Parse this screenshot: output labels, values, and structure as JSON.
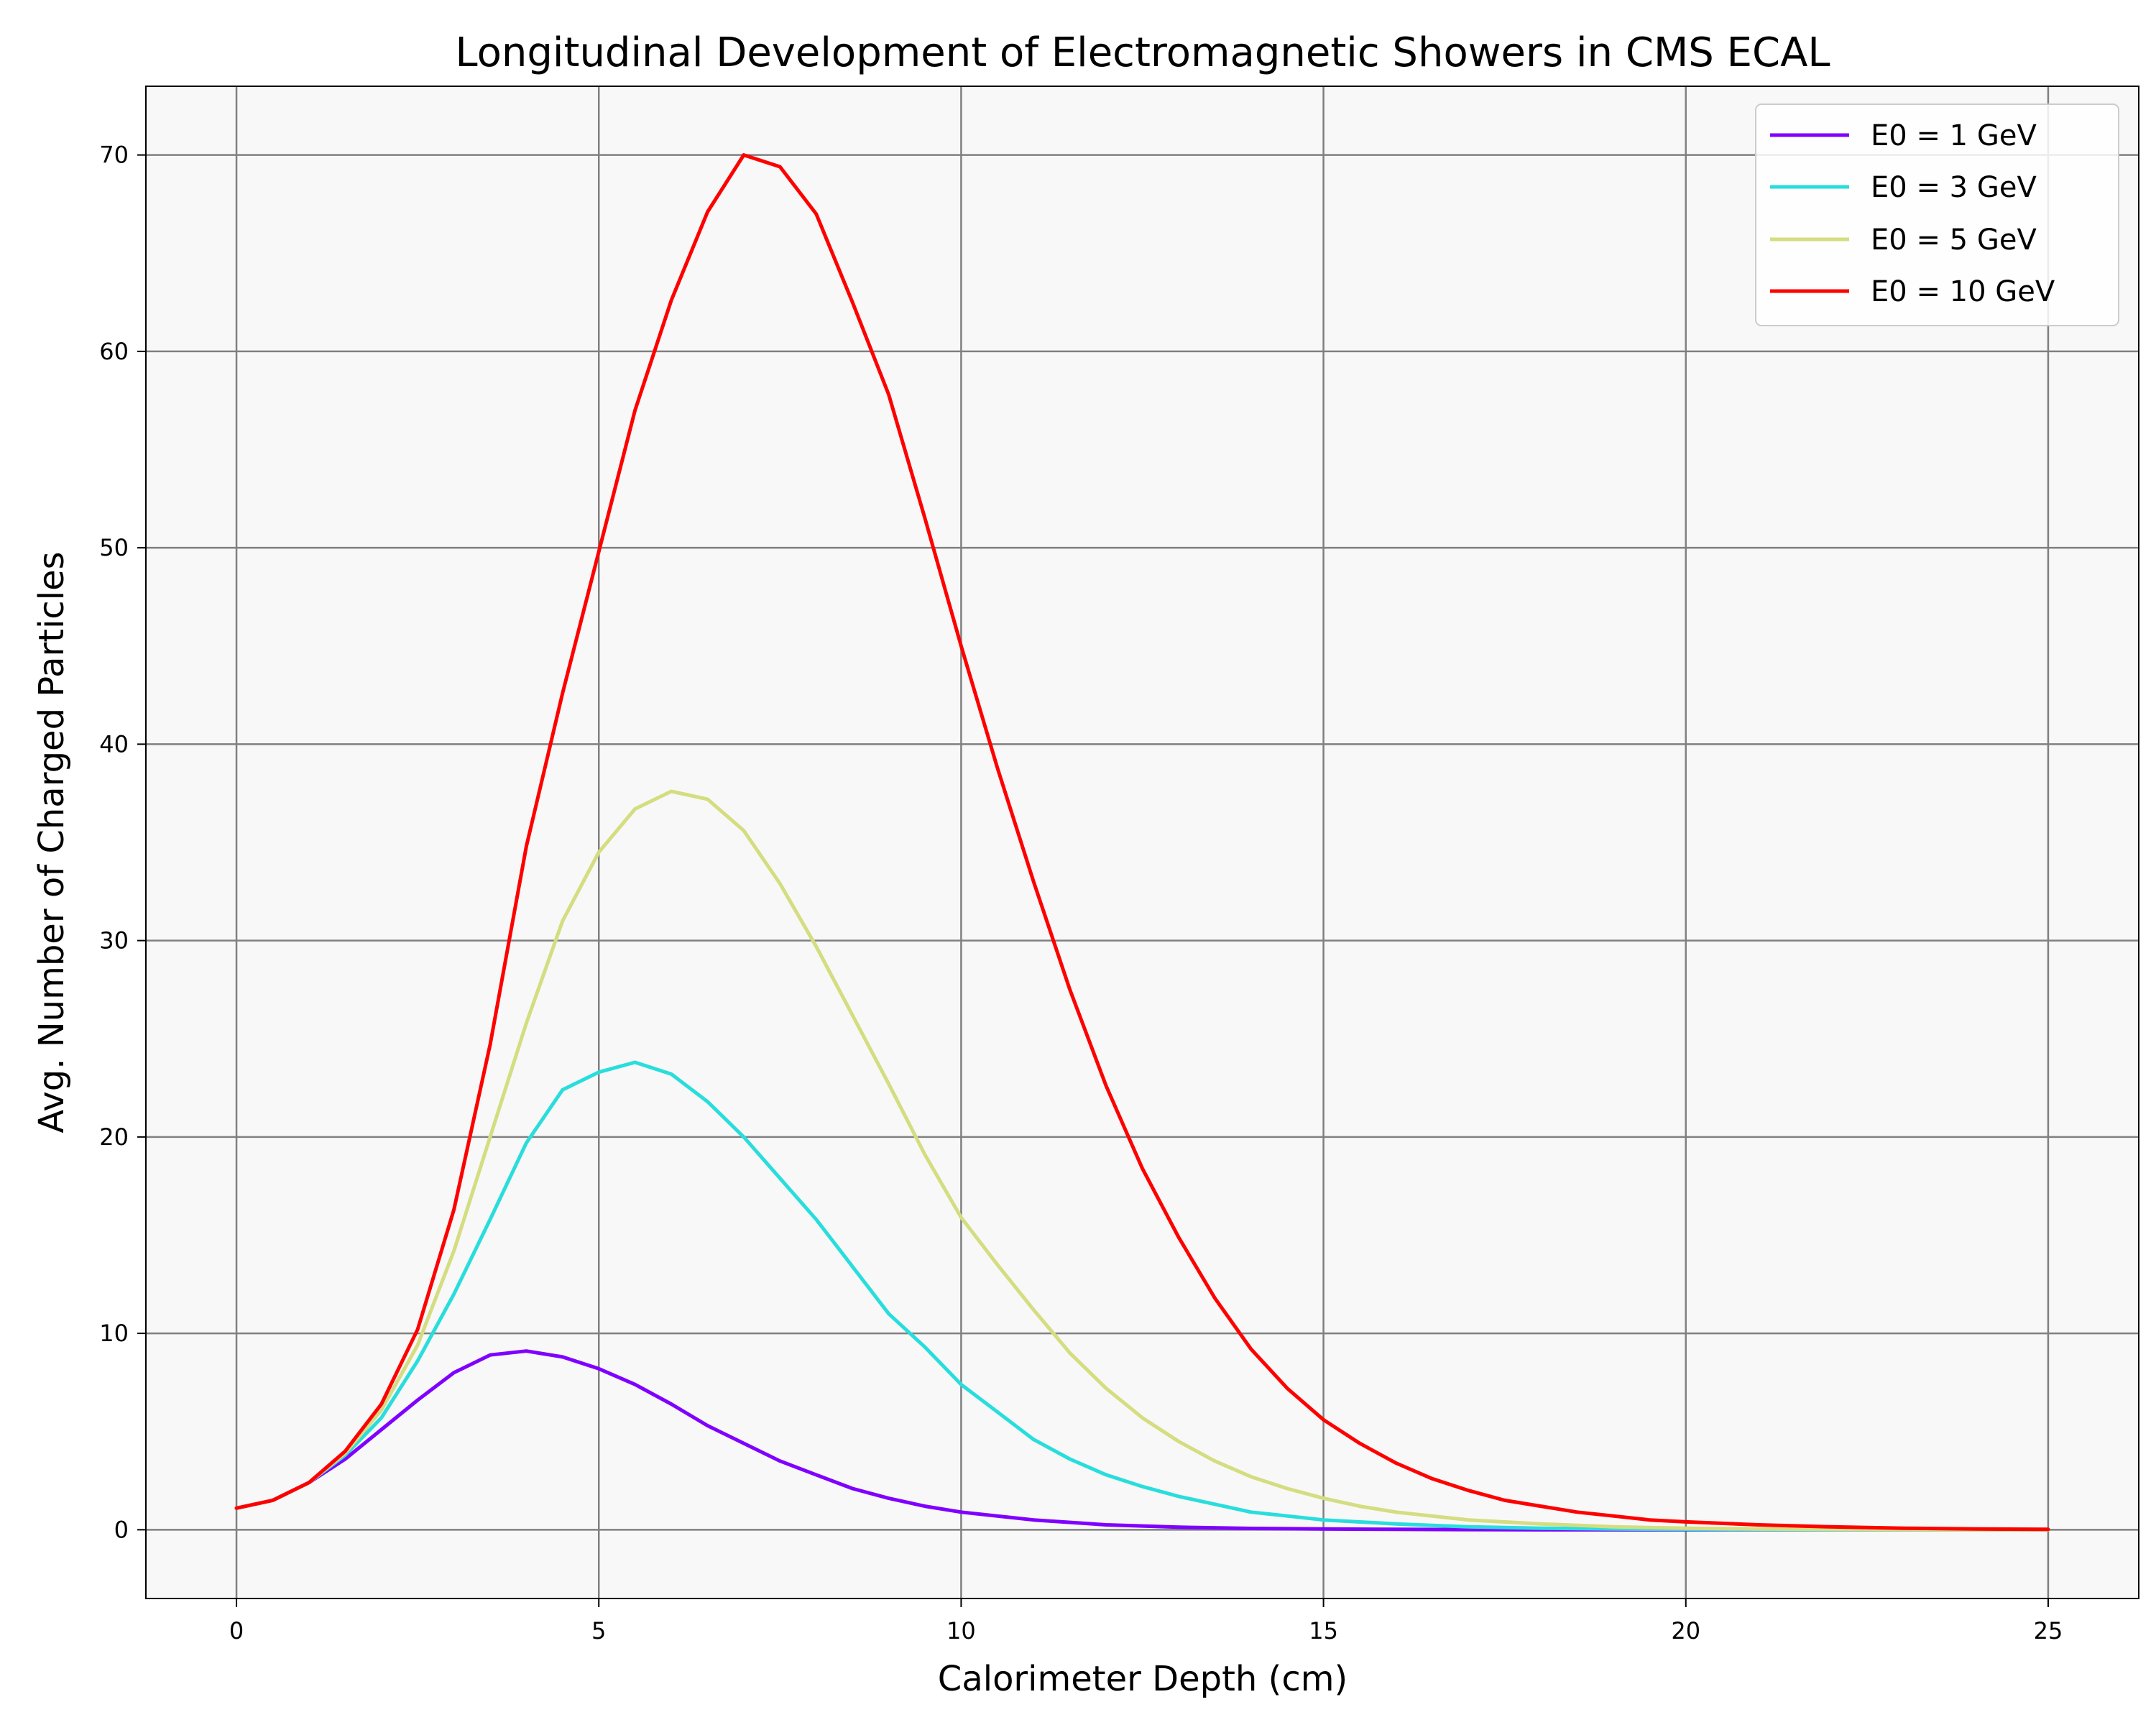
{
  "chart_data": {
    "type": "line",
    "title": "Longitudinal Development of Electromagnetic Showers in CMS ECAL",
    "xlabel": "Calorimeter Depth (cm)",
    "ylabel": "Avg. Number of Charged Particles",
    "xlim": [
      -1.25,
      26.25
    ],
    "ylim": [
      -3.5,
      73.5
    ],
    "xticks": [
      0,
      5,
      10,
      15,
      20,
      25
    ],
    "yticks": [
      0,
      10,
      20,
      30,
      40,
      50,
      60,
      70
    ],
    "grid": true,
    "legend_position": "top-right",
    "background_color": "#f8f8f8",
    "grid_color": "#808080",
    "series": [
      {
        "name": "E0 = 1 GeV",
        "color": "#8000ff",
        "x": [
          0,
          0.5,
          1,
          1.5,
          2,
          2.5,
          3,
          3.5,
          4,
          4.5,
          5,
          5.5,
          6,
          6.5,
          7,
          7.5,
          8,
          8.5,
          9,
          9.5,
          10,
          11,
          12,
          13,
          14,
          15,
          16,
          17,
          18,
          19,
          20,
          21,
          22,
          23,
          24,
          25
        ],
        "y": [
          1.1,
          1.5,
          2.4,
          3.6,
          5.1,
          6.6,
          8.0,
          8.9,
          9.1,
          8.8,
          8.2,
          7.4,
          6.4,
          5.3,
          4.4,
          3.5,
          2.8,
          2.1,
          1.6,
          1.2,
          0.9,
          0.5,
          0.25,
          0.13,
          0.07,
          0.04,
          0.02,
          0.01,
          0,
          0,
          0,
          0,
          0,
          0,
          0,
          0
        ]
      },
      {
        "name": "E0 = 3 GeV",
        "color": "#2adddd",
        "x": [
          0,
          0.5,
          1,
          1.5,
          2,
          2.5,
          3,
          3.5,
          4,
          4.5,
          5,
          5.5,
          6,
          6.5,
          7,
          7.5,
          8,
          8.5,
          9,
          9.5,
          10,
          10.5,
          11,
          11.5,
          12,
          12.5,
          13,
          13.5,
          14,
          14.5,
          15,
          16,
          17,
          18,
          19,
          20,
          21,
          22,
          23,
          24,
          25
        ],
        "y": [
          1.1,
          1.5,
          2.4,
          3.8,
          5.7,
          8.6,
          12.0,
          15.8,
          19.7,
          22.4,
          23.3,
          23.8,
          23.2,
          21.8,
          20.0,
          17.9,
          15.8,
          13.4,
          11.0,
          9.3,
          7.4,
          6.0,
          4.6,
          3.6,
          2.8,
          2.2,
          1.7,
          1.3,
          0.9,
          0.7,
          0.5,
          0.3,
          0.15,
          0.08,
          0.04,
          0.02,
          0.01,
          0,
          0,
          0,
          0
        ]
      },
      {
        "name": "E0 = 5 GeV",
        "color": "#d4dd80",
        "x": [
          0,
          0.5,
          1,
          1.5,
          2,
          2.5,
          3,
          3.5,
          4,
          4.5,
          5,
          5.5,
          6,
          6.5,
          7,
          7.5,
          8,
          8.5,
          9,
          9.5,
          10,
          10.5,
          11,
          11.5,
          12,
          12.5,
          13,
          13.5,
          14,
          14.5,
          15,
          15.5,
          16,
          17,
          18,
          19,
          20,
          21,
          22,
          23,
          24,
          25
        ],
        "y": [
          1.1,
          1.5,
          2.4,
          3.9,
          6.1,
          9.4,
          14.2,
          20.0,
          25.8,
          31.0,
          34.5,
          36.7,
          37.6,
          37.2,
          35.6,
          32.9,
          29.7,
          26.2,
          22.7,
          19.1,
          15.9,
          13.5,
          11.2,
          9.0,
          7.2,
          5.7,
          4.5,
          3.5,
          2.7,
          2.1,
          1.6,
          1.2,
          0.9,
          0.5,
          0.3,
          0.15,
          0.08,
          0.04,
          0.02,
          0.01,
          0,
          0
        ]
      },
      {
        "name": "E0 = 10 GeV",
        "color": "#ff0000",
        "x": [
          0,
          0.5,
          1,
          1.5,
          2,
          2.5,
          3,
          3.5,
          4,
          4.5,
          5,
          5.5,
          6,
          6.5,
          7,
          7.5,
          8,
          8.5,
          9,
          9.5,
          10,
          10.5,
          11,
          11.5,
          12,
          12.5,
          13,
          13.5,
          14,
          14.5,
          15,
          15.5,
          16,
          16.5,
          17,
          17.5,
          18,
          18.5,
          19,
          19.5,
          20,
          21,
          22,
          23,
          24,
          25
        ],
        "y": [
          1.1,
          1.5,
          2.4,
          4.0,
          6.4,
          10.2,
          16.3,
          24.7,
          34.8,
          42.6,
          49.8,
          57.0,
          62.6,
          67.1,
          70.0,
          69.4,
          67.0,
          62.5,
          57.8,
          51.5,
          45.0,
          38.8,
          33.0,
          27.5,
          22.6,
          18.4,
          14.9,
          11.8,
          9.2,
          7.2,
          5.6,
          4.4,
          3.4,
          2.6,
          2.0,
          1.5,
          1.2,
          0.9,
          0.7,
          0.5,
          0.4,
          0.25,
          0.15,
          0.08,
          0.04,
          0.02
        ]
      }
    ]
  }
}
